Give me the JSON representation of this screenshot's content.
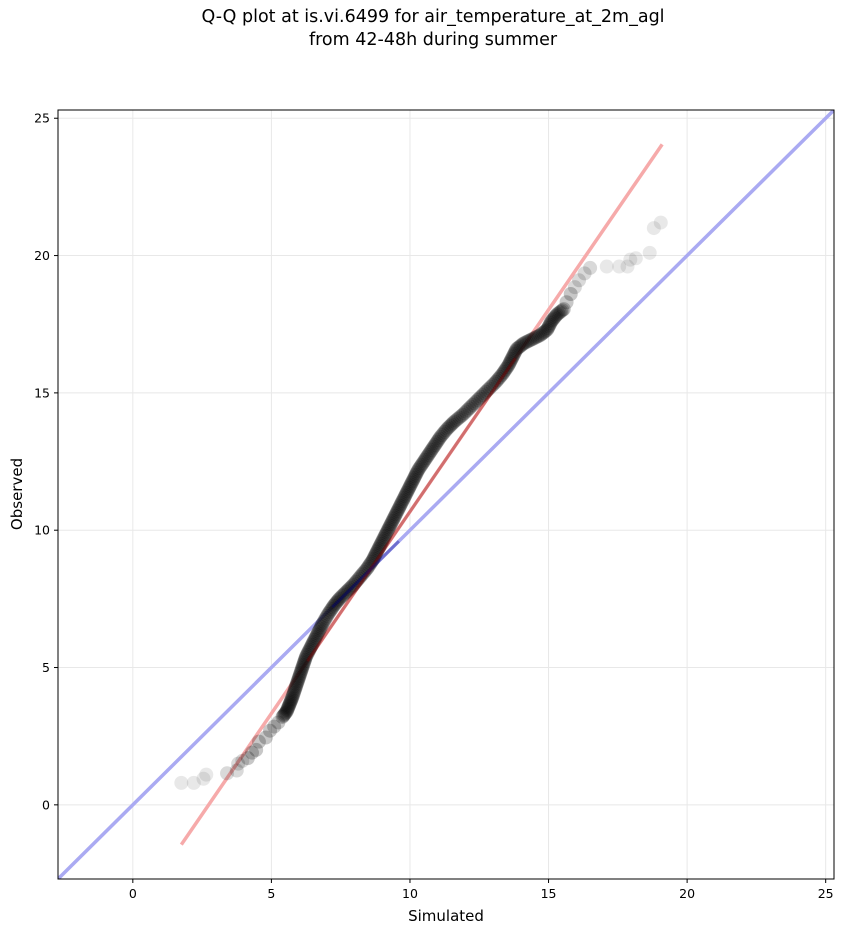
{
  "chart_data": {
    "type": "scatter",
    "title_line1": "Q-Q plot at is.vi.6499 for air_temperature_at_2m_agl",
    "title_line2": "from 42-48h during summer",
    "xlabel": "Simulated",
    "ylabel": "Observed",
    "xlim": [
      -2.7,
      25.3
    ],
    "ylim": [
      -2.7,
      25.3
    ],
    "xticks": [
      0,
      5,
      10,
      15,
      20,
      25
    ],
    "yticks": [
      0,
      5,
      10,
      15,
      20,
      25
    ],
    "grid": true,
    "colors": {
      "points": "#000000",
      "identity_line": "#aaaaf2",
      "fit_line": "#f6aaaa",
      "inner_fit": "#8b0000",
      "inner_identity": "#00008b"
    },
    "identity_line": [
      [
        -2.7,
        -2.7
      ],
      [
        25.3,
        25.3
      ]
    ],
    "fit_line": [
      [
        1.75,
        -1.45
      ],
      [
        19.1,
        24.05
      ]
    ],
    "points": [
      [
        1.75,
        0.8
      ],
      [
        2.2,
        0.8
      ],
      [
        2.55,
        0.95
      ],
      [
        2.65,
        1.1
      ],
      [
        3.4,
        1.15
      ],
      [
        3.75,
        1.25
      ],
      [
        3.8,
        1.5
      ],
      [
        3.95,
        1.6
      ],
      [
        4.15,
        1.7
      ],
      [
        4.3,
        1.9
      ],
      [
        4.45,
        2.0
      ],
      [
        4.55,
        2.3
      ],
      [
        4.8,
        2.45
      ],
      [
        4.95,
        2.7
      ],
      [
        5.1,
        2.85
      ],
      [
        5.25,
        3.0
      ],
      [
        5.4,
        3.2
      ],
      [
        5.55,
        3.4
      ],
      [
        5.65,
        3.65
      ],
      [
        5.75,
        3.9
      ],
      [
        5.85,
        4.2
      ],
      [
        5.95,
        4.5
      ],
      [
        6.05,
        4.8
      ],
      [
        6.15,
        5.1
      ],
      [
        6.25,
        5.4
      ],
      [
        6.4,
        5.7
      ],
      [
        6.55,
        6.0
      ],
      [
        6.7,
        6.3
      ],
      [
        6.85,
        6.6
      ],
      [
        7.05,
        6.95
      ],
      [
        7.25,
        7.25
      ],
      [
        7.45,
        7.5
      ],
      [
        7.7,
        7.75
      ],
      [
        7.95,
        8.0
      ],
      [
        8.2,
        8.3
      ],
      [
        8.45,
        8.6
      ],
      [
        8.65,
        8.9
      ],
      [
        8.8,
        9.2
      ],
      [
        8.95,
        9.5
      ],
      [
        9.1,
        9.8
      ],
      [
        9.25,
        10.1
      ],
      [
        9.4,
        10.4
      ],
      [
        9.55,
        10.7
      ],
      [
        9.7,
        11.0
      ],
      [
        9.85,
        11.3
      ],
      [
        10.0,
        11.6
      ],
      [
        10.15,
        11.9
      ],
      [
        10.3,
        12.2
      ],
      [
        10.5,
        12.5
      ],
      [
        10.7,
        12.8
      ],
      [
        10.9,
        13.1
      ],
      [
        11.1,
        13.4
      ],
      [
        11.35,
        13.7
      ],
      [
        11.6,
        13.95
      ],
      [
        11.9,
        14.2
      ],
      [
        12.2,
        14.5
      ],
      [
        12.5,
        14.8
      ],
      [
        12.8,
        15.1
      ],
      [
        13.1,
        15.4
      ],
      [
        13.35,
        15.7
      ],
      [
        13.55,
        16.0
      ],
      [
        13.7,
        16.3
      ],
      [
        13.85,
        16.6
      ],
      [
        14.1,
        16.8
      ],
      [
        14.4,
        16.95
      ],
      [
        14.7,
        17.1
      ],
      [
        14.95,
        17.3
      ],
      [
        15.1,
        17.6
      ],
      [
        15.3,
        17.85
      ],
      [
        15.55,
        18.05
      ],
      [
        15.65,
        18.3
      ],
      [
        15.8,
        18.6
      ],
      [
        15.95,
        18.85
      ],
      [
        16.1,
        19.1
      ],
      [
        16.3,
        19.35
      ],
      [
        16.5,
        19.55
      ],
      [
        17.1,
        19.6
      ],
      [
        17.55,
        19.6
      ],
      [
        17.85,
        19.6
      ],
      [
        17.95,
        19.85
      ],
      [
        18.15,
        19.9
      ],
      [
        18.65,
        20.1
      ],
      [
        18.8,
        21.0
      ],
      [
        19.05,
        21.2
      ]
    ]
  }
}
